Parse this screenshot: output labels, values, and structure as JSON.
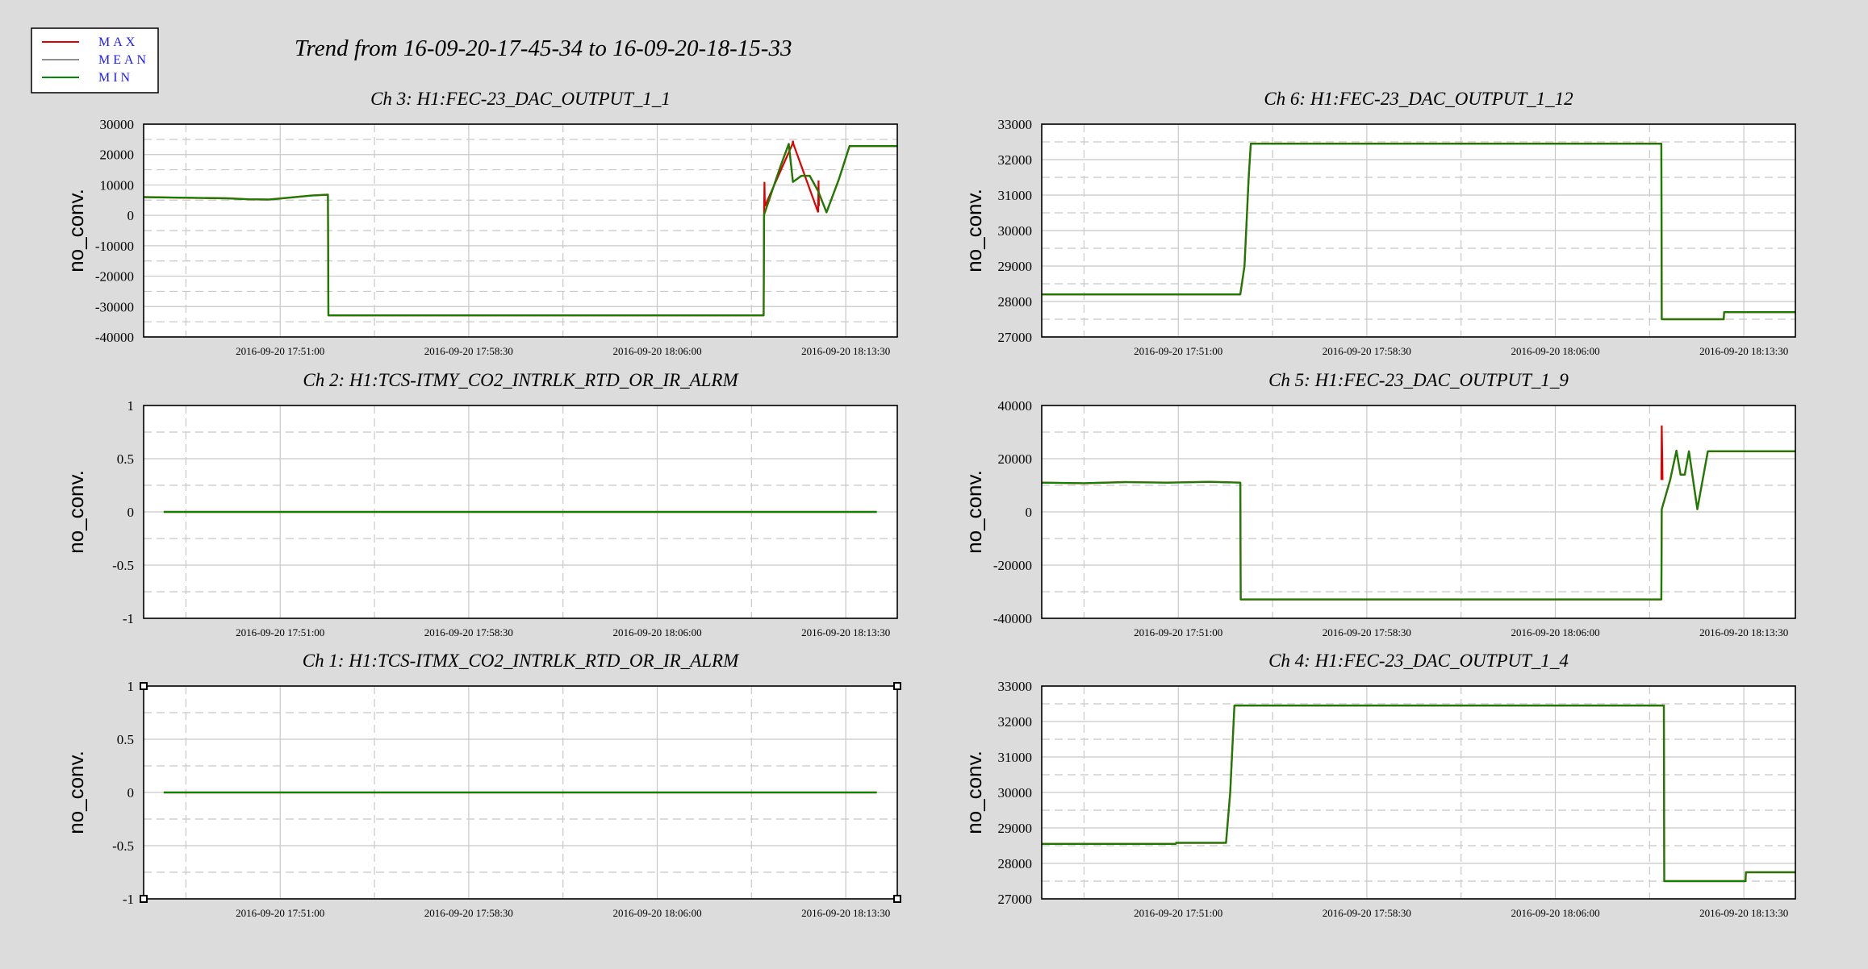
{
  "header": {
    "title": "Trend from 16-09-20-17-45-34 to 16-09-20-18-15-33"
  },
  "legend": {
    "entries": [
      {
        "label": "MAX",
        "color": "#e00000"
      },
      {
        "label": "MEAN",
        "color": "#909090"
      },
      {
        "label": "MIN",
        "color": "#008c00"
      }
    ],
    "text_color": "#1a1aff"
  },
  "colors": {
    "background": "#dcdcdc",
    "plot_background": "#ffffff",
    "grid": "#c8c8c8",
    "max": "#e00000",
    "mean": "#909090",
    "min": "#008c00"
  },
  "chart_data": [
    {
      "type": "line",
      "title": "Ch 3: H1:FEC-23_DAC_OUTPUT_1_1",
      "ylabel": "no_conv.",
      "ylim": [
        -40000,
        30000
      ],
      "yticks": [
        30000,
        20000,
        10000,
        0,
        -10000,
        -20000,
        -30000,
        -40000
      ],
      "xlim": [
        0,
        1799
      ],
      "xticks": [
        {
          "x": 326,
          "label": "2016-09-20 17:51:00"
        },
        {
          "x": 776,
          "label": "2016-09-20 17:58:30"
        },
        {
          "x": 1226,
          "label": "2016-09-20 18:06:00"
        },
        {
          "x": 1676,
          "label": "2016-09-20 18:13:30"
        }
      ],
      "series": [
        {
          "name": "MIN",
          "x": [
            0,
            100,
            200,
            250,
            300,
            400,
            440,
            441,
            1480,
            1481,
            1500,
            1520,
            1540,
            1550,
            1570,
            1590,
            1610,
            1630,
            1660,
            1685,
            1799
          ],
          "y": [
            6000,
            5800,
            5600,
            5300,
            5200,
            6500,
            6800,
            -32900,
            -32900,
            200,
            8000,
            16000,
            23500,
            11000,
            13000,
            13000,
            8000,
            1000,
            12000,
            22800,
            22800
          ]
        },
        {
          "name": "MAX",
          "x": [
            1481,
            1482,
            1483,
            1549,
            1550,
            1551,
            1610,
            1611,
            1612
          ],
          "y": [
            200,
            11000,
            3000,
            23500,
            24500,
            23500,
            1000,
            11500,
            3000
          ]
        }
      ],
      "grid": true
    },
    {
      "type": "line",
      "title": "Ch 6: H1:FEC-23_DAC_OUTPUT_1_12",
      "ylabel": "no_conv.",
      "ylim": [
        27000,
        33000
      ],
      "yticks": [
        33000,
        32000,
        31000,
        30000,
        29000,
        28000,
        27000
      ],
      "xlim": [
        0,
        1799
      ],
      "xticks": [
        {
          "x": 326,
          "label": "2016-09-20 17:51:00"
        },
        {
          "x": 776,
          "label": "2016-09-20 17:58:30"
        },
        {
          "x": 1226,
          "label": "2016-09-20 18:06:00"
        },
        {
          "x": 1676,
          "label": "2016-09-20 18:13:30"
        }
      ],
      "series": [
        {
          "name": "MIN",
          "x": [
            0,
            474,
            484,
            494,
            499,
            1479,
            1480,
            1628,
            1629,
            1799
          ],
          "y": [
            28200,
            28200,
            29000,
            31500,
            32450,
            32450,
            27500,
            27500,
            27700,
            27700
          ]
        }
      ],
      "grid": true
    },
    {
      "type": "line",
      "title": "Ch 2: H1:TCS-ITMY_CO2_INTRLK_RTD_OR_IR_ALRM",
      "ylabel": "no_conv.",
      "ylim": [
        -1,
        1
      ],
      "yticks": [
        1,
        0.5,
        0,
        -0.5,
        -1
      ],
      "xlim": [
        0,
        1799
      ],
      "xticks": [
        {
          "x": 326,
          "label": "2016-09-20 17:51:00"
        },
        {
          "x": 776,
          "label": "2016-09-20 17:58:30"
        },
        {
          "x": 1226,
          "label": "2016-09-20 18:06:00"
        },
        {
          "x": 1676,
          "label": "2016-09-20 18:13:30"
        }
      ],
      "series": [
        {
          "name": "MIN",
          "x": [
            48,
            1750
          ],
          "y": [
            0,
            0
          ]
        }
      ],
      "grid": true
    },
    {
      "type": "line",
      "title": "Ch 5: H1:FEC-23_DAC_OUTPUT_1_9",
      "ylabel": "no_conv.",
      "ylim": [
        -40000,
        40000
      ],
      "yticks": [
        40000,
        20000,
        0,
        -20000,
        -40000
      ],
      "xlim": [
        0,
        1799
      ],
      "xticks": [
        {
          "x": 326,
          "label": "2016-09-20 17:51:00"
        },
        {
          "x": 776,
          "label": "2016-09-20 17:58:30"
        },
        {
          "x": 1226,
          "label": "2016-09-20 18:06:00"
        },
        {
          "x": 1676,
          "label": "2016-09-20 18:13:30"
        }
      ],
      "series": [
        {
          "name": "MIN",
          "x": [
            0,
            100,
            200,
            300,
            400,
            474,
            475,
            1479,
            1480,
            1500,
            1515,
            1525,
            1535,
            1545,
            1565,
            1590,
            1799
          ],
          "y": [
            11000,
            10800,
            11200,
            11000,
            11300,
            11000,
            -32900,
            -32900,
            1000,
            12000,
            23000,
            14000,
            14000,
            22800,
            1000,
            22800,
            22800
          ]
        },
        {
          "name": "MAX",
          "x": [
            1479,
            1480,
            1482
          ],
          "y": [
            12000,
            32500,
            12000
          ]
        }
      ],
      "grid": true
    },
    {
      "type": "line",
      "title": "Ch 1: H1:TCS-ITMX_CO2_INTRLK_RTD_OR_IR_ALRM",
      "ylabel": "no_conv.",
      "ylim": [
        -1,
        1
      ],
      "yticks": [
        1,
        0.5,
        0,
        -0.5,
        -1
      ],
      "xlim": [
        0,
        1799
      ],
      "xticks": [
        {
          "x": 326,
          "label": "2016-09-20 17:51:00"
        },
        {
          "x": 776,
          "label": "2016-09-20 17:58:30"
        },
        {
          "x": 1226,
          "label": "2016-09-20 18:06:00"
        },
        {
          "x": 1676,
          "label": "2016-09-20 18:13:30"
        }
      ],
      "series": [
        {
          "name": "MIN",
          "x": [
            48,
            1750
          ],
          "y": [
            0,
            0
          ]
        }
      ],
      "grid": true,
      "selected": true
    },
    {
      "type": "line",
      "title": "Ch 4: H1:FEC-23_DAC_OUTPUT_1_4",
      "ylabel": "no_conv.",
      "ylim": [
        27000,
        33000
      ],
      "yticks": [
        33000,
        32000,
        31000,
        30000,
        29000,
        28000,
        27000
      ],
      "xlim": [
        0,
        1799
      ],
      "xticks": [
        {
          "x": 326,
          "label": "2016-09-20 17:51:00"
        },
        {
          "x": 776,
          "label": "2016-09-20 17:58:30"
        },
        {
          "x": 1226,
          "label": "2016-09-20 18:06:00"
        },
        {
          "x": 1676,
          "label": "2016-09-20 18:13:30"
        }
      ],
      "series": [
        {
          "name": "MIN",
          "x": [
            0,
            320,
            321,
            440,
            450,
            460,
            1485,
            1486,
            1680,
            1681,
            1799
          ],
          "y": [
            28550,
            28550,
            28580,
            28580,
            30000,
            32450,
            32450,
            27500,
            27500,
            27750,
            27750
          ]
        }
      ],
      "grid": true
    }
  ]
}
